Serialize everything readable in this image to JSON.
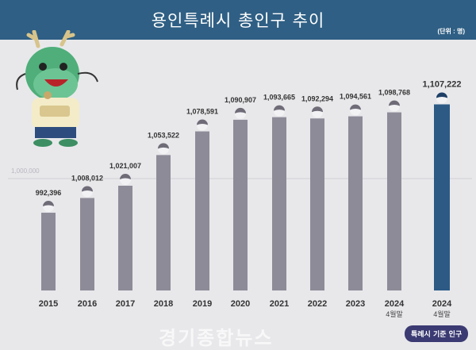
{
  "header": {
    "title": "용인특례시 총인구 추이",
    "unit": "(단위 : 명)"
  },
  "badge": "특례시 기준 인구",
  "watermark": "경기종합뉴스",
  "colors": {
    "header": "#2f5f84",
    "bar": "#8e8b98",
    "highlight_bar": "#2c5a85",
    "background": "#e8e8eb"
  },
  "chart_data": {
    "type": "bar",
    "title": "용인특례시 총인구 추이",
    "unit": "명",
    "categories": [
      "2015",
      "2016",
      "2017",
      "2018",
      "2019",
      "2020",
      "2021",
      "2022",
      "2023",
      "2024|4월말",
      "2024|4월말"
    ],
    "values": [
      992396,
      1008012,
      1021007,
      1053522,
      1078591,
      1090907,
      1093665,
      1092294,
      1094561,
      1098768,
      1107222
    ],
    "labels": [
      "992,396",
      "1,008,012",
      "1,021,007",
      "1,053,522",
      "1,078,591",
      "1,090,907",
      "1,093,665",
      "1,092,294",
      "1,094,561",
      "1,098,768",
      "1,107,222"
    ],
    "highlight_index": 10,
    "reference_line": {
      "value": 1000000,
      "label": "1,000,000"
    },
    "grid": false,
    "legend": "none"
  }
}
